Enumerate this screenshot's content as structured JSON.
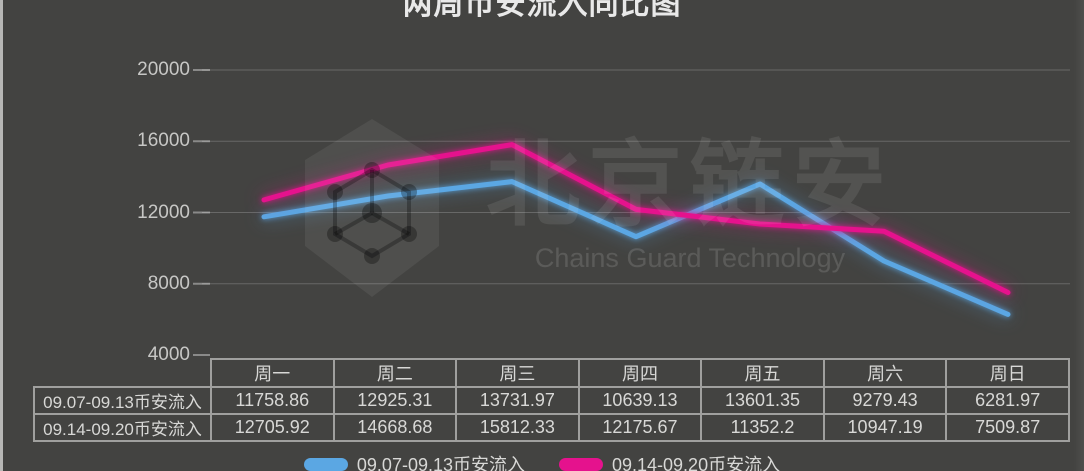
{
  "page": {
    "title": "两周币安流入同比图",
    "watermark": {
      "cn": "北京链安",
      "en": "Chains Guard Technology"
    }
  },
  "chart_data": {
    "type": "line",
    "title": "两周币安流入同比图",
    "categories": [
      "周一",
      "周二",
      "周三",
      "周四",
      "周五",
      "周六",
      "周日"
    ],
    "series": [
      {
        "name": "09.07-09.13币安流入",
        "color": "#5ba7e3",
        "values": [
          11758.86,
          12925.31,
          13731.97,
          10639.13,
          13601.35,
          9279.43,
          6281.97
        ]
      },
      {
        "name": "09.14-09.20币安流入",
        "color": "#e5128d",
        "values": [
          12705.92,
          14668.68,
          15812.33,
          12175.67,
          11352.2,
          10947.19,
          7509.87
        ]
      }
    ],
    "ylim": [
      4000,
      20000
    ],
    "yticks": [
      20000,
      16000,
      12000,
      8000,
      4000
    ],
    "grid": true,
    "legend_position": "bottom"
  }
}
